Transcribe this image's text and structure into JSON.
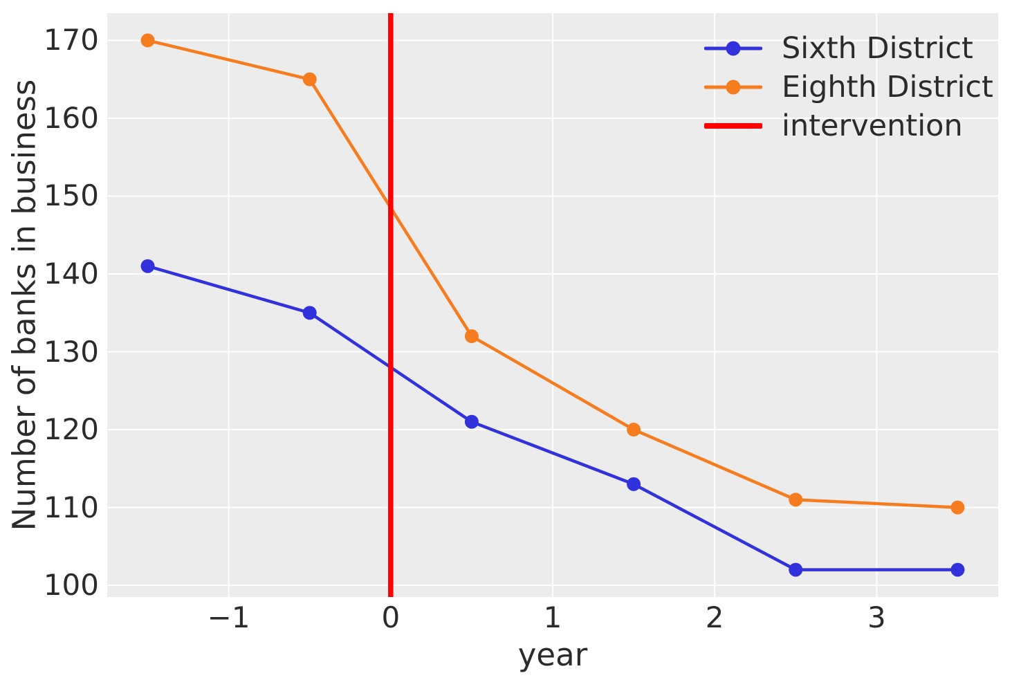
{
  "chart_data": {
    "type": "line",
    "title": "",
    "xlabel": "year",
    "ylabel": "Number of banks in business",
    "x": [
      -1.5,
      -0.5,
      0.5,
      1.5,
      2.5,
      3.5
    ],
    "series": [
      {
        "name": "Sixth District",
        "color": "#3232dc",
        "marker": "circle",
        "values": [
          141,
          135,
          121,
          113,
          102,
          102
        ]
      },
      {
        "name": "Eighth District",
        "color": "#f57d1f",
        "marker": "circle",
        "values": [
          170,
          165,
          132,
          120,
          111,
          110
        ]
      }
    ],
    "intervention": {
      "label": "intervention",
      "x": 0,
      "color": "#ff0000"
    },
    "xticks": [
      -1,
      0,
      1,
      2,
      3
    ],
    "xtick_labels": [
      "−1",
      "0",
      "1",
      "2",
      "3"
    ],
    "yticks": [
      100,
      110,
      120,
      130,
      140,
      150,
      160,
      170
    ],
    "ytick_labels": [
      "100",
      "110",
      "120",
      "130",
      "140",
      "150",
      "160",
      "170"
    ],
    "xlim": [
      -1.75,
      3.75
    ],
    "ylim": [
      98.5,
      173.5
    ],
    "grid": true,
    "grid_color": "#ffffff",
    "plot_background": "#ececec",
    "figure_background": "#ffffff",
    "text_color": "#2b2b2b",
    "legend_position": "upper right",
    "legend_frame": false
  }
}
